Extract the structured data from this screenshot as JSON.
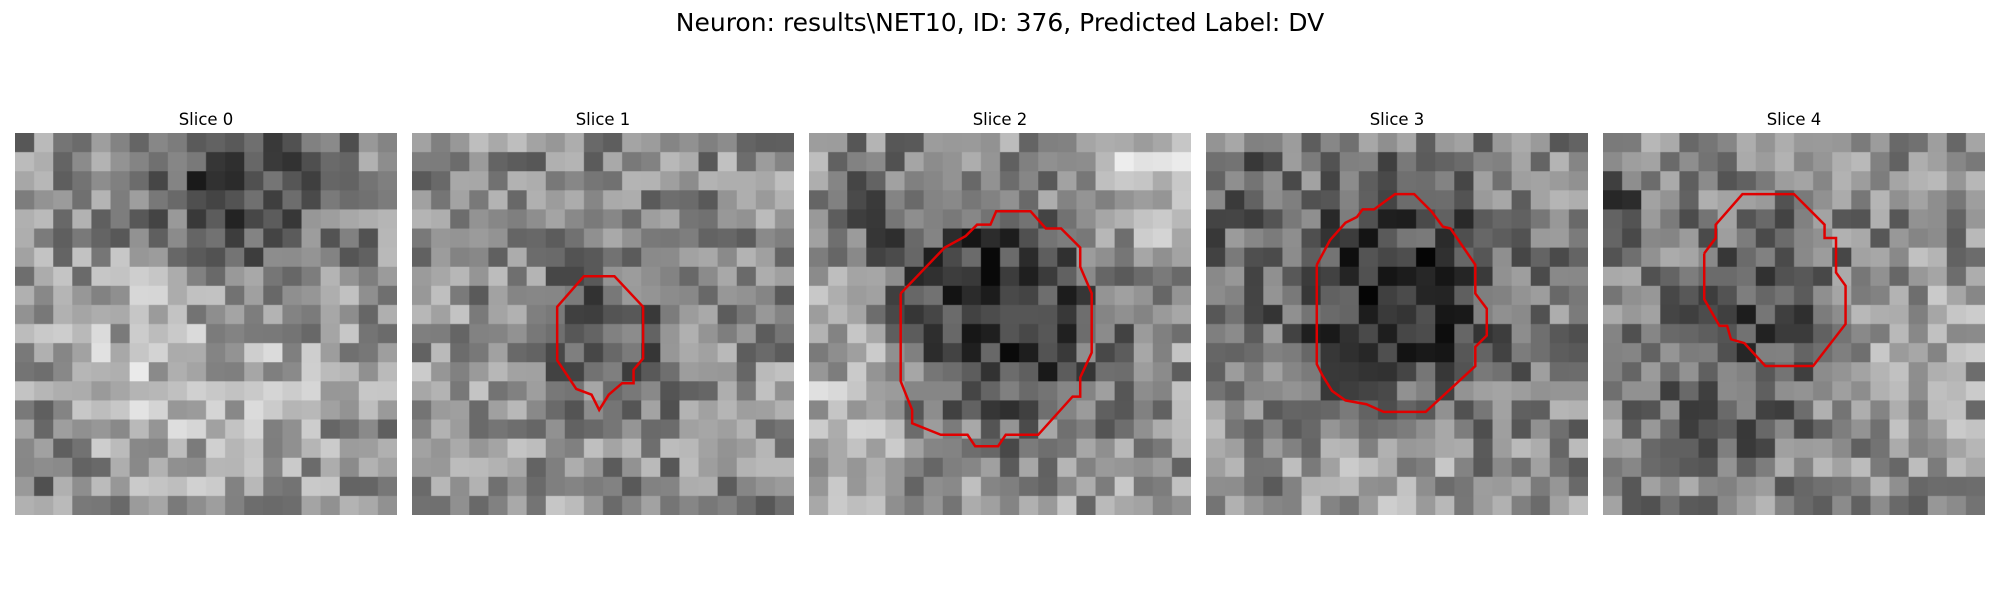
{
  "figure": {
    "title": "Neuron: results\\NET10, ID: 376, Predicted Label: DV"
  },
  "contour_color": "#e00000",
  "panels": [
    {
      "label": "Slice 0",
      "contour": []
    },
    {
      "label": "Slice 1",
      "contour": [
        [
          7.6,
          10.8
        ],
        [
          7.6,
          9.1
        ],
        [
          9.0,
          7.5
        ],
        [
          10.6,
          7.5
        ],
        [
          12.1,
          9.1
        ],
        [
          12.1,
          11.8
        ],
        [
          11.6,
          12.4
        ],
        [
          11.6,
          13.1
        ],
        [
          11.0,
          13.1
        ],
        [
          10.3,
          13.7
        ],
        [
          9.8,
          14.5
        ],
        [
          9.4,
          13.7
        ],
        [
          8.6,
          13.4
        ],
        [
          7.6,
          11.9
        ],
        [
          7.6,
          10.8
        ]
      ]
    },
    {
      "label": "Slice 2",
      "contour": [
        [
          4.8,
          8.4
        ],
        [
          7.1,
          6.0
        ],
        [
          8.2,
          5.4
        ],
        [
          8.8,
          4.8
        ],
        [
          9.5,
          4.8
        ],
        [
          9.8,
          4.1
        ],
        [
          11.6,
          4.1
        ],
        [
          12.4,
          5.0
        ],
        [
          13.2,
          5.0
        ],
        [
          14.2,
          6.0
        ],
        [
          14.2,
          7.0
        ],
        [
          14.8,
          8.4
        ],
        [
          14.8,
          11.5
        ],
        [
          14.2,
          12.8
        ],
        [
          14.2,
          13.8
        ],
        [
          13.8,
          13.8
        ],
        [
          12.0,
          15.8
        ],
        [
          10.3,
          15.8
        ],
        [
          9.9,
          16.4
        ],
        [
          8.7,
          16.4
        ],
        [
          8.3,
          15.8
        ],
        [
          6.9,
          15.8
        ],
        [
          5.4,
          15.2
        ],
        [
          5.4,
          14.5
        ],
        [
          4.8,
          13.0
        ],
        [
          4.8,
          8.4
        ]
      ]
    },
    {
      "label": "Slice 3",
      "contour": [
        [
          5.8,
          6.9
        ],
        [
          6.5,
          5.6
        ],
        [
          7.3,
          4.7
        ],
        [
          7.9,
          4.4
        ],
        [
          8.2,
          4.0
        ],
        [
          8.8,
          4.0
        ],
        [
          9.9,
          3.2
        ],
        [
          10.9,
          3.2
        ],
        [
          11.8,
          4.1
        ],
        [
          12.4,
          4.9
        ],
        [
          12.8,
          5.0
        ],
        [
          14.1,
          6.9
        ],
        [
          14.1,
          8.4
        ],
        [
          14.7,
          9.2
        ],
        [
          14.7,
          10.6
        ],
        [
          14.1,
          11.2
        ],
        [
          14.1,
          12.2
        ],
        [
          11.5,
          14.6
        ],
        [
          9.3,
          14.6
        ],
        [
          8.4,
          14.2
        ],
        [
          7.3,
          14.0
        ],
        [
          6.6,
          13.5
        ],
        [
          6.1,
          12.7
        ],
        [
          5.8,
          12.1
        ],
        [
          5.8,
          6.9
        ]
      ]
    },
    {
      "label": "Slice 4",
      "contour": [
        [
          5.3,
          6.3
        ],
        [
          5.9,
          5.5
        ],
        [
          5.9,
          4.8
        ],
        [
          7.3,
          3.2
        ],
        [
          10.0,
          3.2
        ],
        [
          11.6,
          4.8
        ],
        [
          11.6,
          5.5
        ],
        [
          12.2,
          5.5
        ],
        [
          12.2,
          7.3
        ],
        [
          12.7,
          8.0
        ],
        [
          12.7,
          10.0
        ],
        [
          11.0,
          12.2
        ],
        [
          8.5,
          12.2
        ],
        [
          7.4,
          11.0
        ],
        [
          6.7,
          10.8
        ],
        [
          6.5,
          10.1
        ],
        [
          6.1,
          10.1
        ],
        [
          5.3,
          8.7
        ],
        [
          5.3,
          6.3
        ]
      ]
    }
  ]
}
